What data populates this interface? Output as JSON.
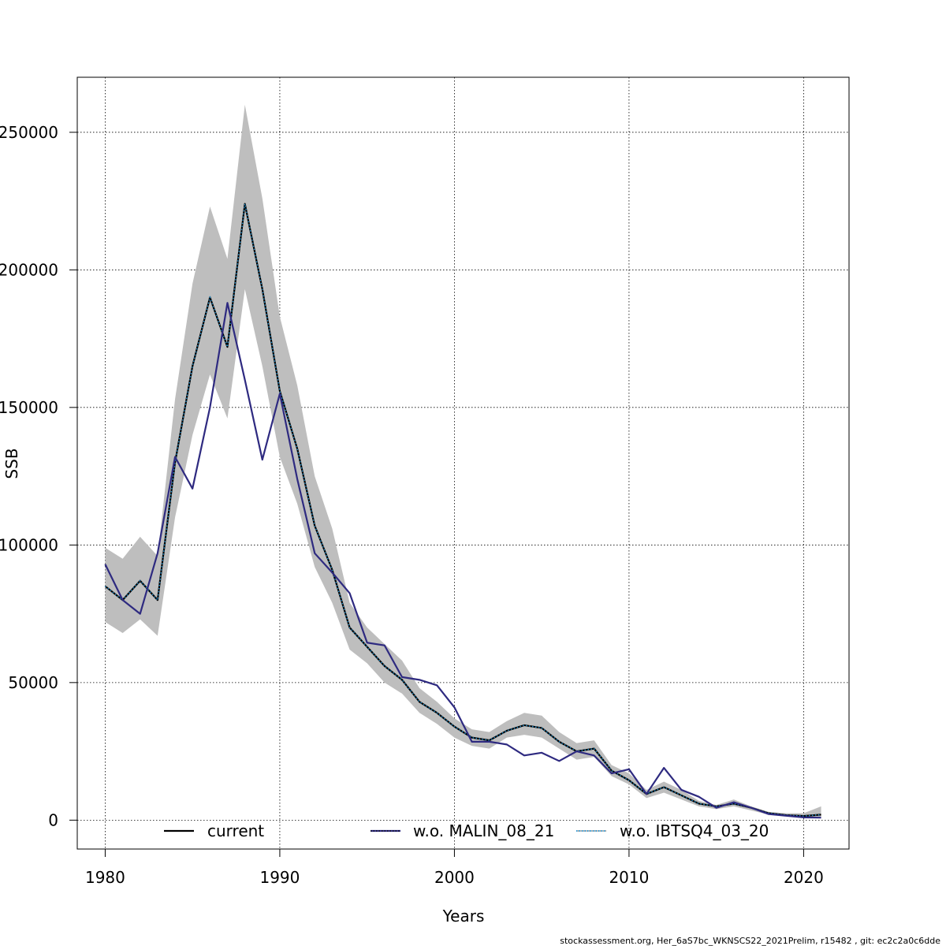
{
  "chart_data": {
    "type": "line",
    "title": "",
    "xlabel": "Years",
    "ylabel": "SSB",
    "xlim": [
      1978.4,
      2022.6
    ],
    "ylim": [
      -10500,
      270000
    ],
    "x_ticks": [
      1980,
      1990,
      2000,
      2010,
      2020
    ],
    "x_tick_labels": [
      "1980",
      "1990",
      "2000",
      "2010",
      "2020"
    ],
    "y_ticks": [
      0,
      50000,
      100000,
      150000,
      200000,
      250000
    ],
    "y_tick_labels": [
      "0",
      "50000",
      "100000",
      "150000",
      "200000",
      "250000"
    ],
    "grid": true,
    "legend_position": "bottom",
    "x": [
      1980,
      1981,
      1982,
      1983,
      1984,
      1985,
      1986,
      1987,
      1988,
      1989,
      1990,
      1991,
      1992,
      1993,
      1994,
      1995,
      1996,
      1997,
      1998,
      1999,
      2000,
      2001,
      2002,
      2003,
      2004,
      2005,
      2006,
      2007,
      2008,
      2009,
      2010,
      2011,
      2012,
      2013,
      2014,
      2015,
      2016,
      2017,
      2018,
      2019,
      2020,
      2021
    ],
    "confidence_band": {
      "color": "#bebebe",
      "upper": [
        99000,
        95000,
        103000,
        96000,
        153000,
        195000,
        223000,
        204000,
        260000,
        226000,
        183000,
        158000,
        125000,
        106000,
        79000,
        70000,
        64000,
        58000,
        48000,
        43000,
        37000,
        33000,
        32000,
        36000,
        39000,
        38000,
        32000,
        28000,
        29000,
        20000,
        17000,
        11000,
        14000,
        11000,
        7000,
        5500,
        7500,
        5000,
        3000,
        2500,
        2500,
        5000
      ],
      "lower": [
        72000,
        68000,
        73000,
        67000,
        110000,
        140000,
        162000,
        146000,
        193000,
        165000,
        132000,
        115000,
        92000,
        79000,
        62000,
        57000,
        50000,
        46000,
        39000,
        35000,
        30000,
        27000,
        26000,
        30000,
        31000,
        30000,
        26000,
        22000,
        23000,
        16000,
        13000,
        8000,
        10000,
        7500,
        5000,
        4000,
        5000,
        3500,
        2000,
        1500,
        1000,
        1000
      ]
    },
    "series": [
      {
        "name": "current",
        "color": "#000000",
        "style": "solid",
        "values": [
          85000,
          80000,
          87000,
          80000,
          130000,
          165000,
          190000,
          172000,
          224000,
          193000,
          156000,
          135000,
          107000,
          91000,
          70000,
          63000,
          56000,
          51000,
          43000,
          39000,
          34000,
          30000,
          29000,
          32500,
          34500,
          33500,
          28500,
          25000,
          26000,
          18000,
          14500,
          9500,
          12000,
          9000,
          6000,
          5000,
          6000,
          4500,
          2500,
          1800,
          1500,
          2000
        ]
      },
      {
        "name": "w.o. MALIN_08_21",
        "color": "#2e2a80",
        "style": "solid",
        "values": [
          93000,
          80000,
          75000,
          97000,
          132000,
          120500,
          150000,
          188000,
          160000,
          131000,
          155000,
          124000,
          97000,
          90000,
          82500,
          64500,
          63500,
          52000,
          51000,
          49000,
          41000,
          28500,
          28500,
          27500,
          23500,
          24500,
          21500,
          25000,
          23500,
          17000,
          18500,
          9500,
          19000,
          11000,
          8500,
          4500,
          6500,
          4500,
          2200,
          1600,
          1000,
          900
        ]
      },
      {
        "name": "w.o. IBTSQ4_03_20",
        "color": "#1e90d0",
        "style": "dotted",
        "values": [
          85000,
          80000,
          87000,
          80000,
          130000,
          165000,
          190000,
          172000,
          224000,
          193000,
          156000,
          135000,
          107000,
          91000,
          70000,
          63000,
          56000,
          51000,
          43000,
          39000,
          34000,
          30000,
          29000,
          32500,
          34500,
          33500,
          28500,
          25000,
          26000,
          18000,
          14500,
          9500,
          12000,
          9000,
          6000,
          5000,
          6000,
          4500,
          2500,
          1800,
          1500,
          2000
        ]
      }
    ],
    "legend": [
      {
        "label": "current",
        "color": "#000000",
        "style": "solid"
      },
      {
        "label": "w.o. MALIN_08_21",
        "color": "#2e2a80",
        "style": "solid"
      },
      {
        "label": "w.o. IBTSQ4_03_20",
        "color": "#1e90d0",
        "style": "dotted"
      }
    ]
  },
  "footer": "stockassessment.org, Her_6aS7bc_WKNSCS22_2021Prelim, r15482 , git: ec2c2a0c6dde"
}
